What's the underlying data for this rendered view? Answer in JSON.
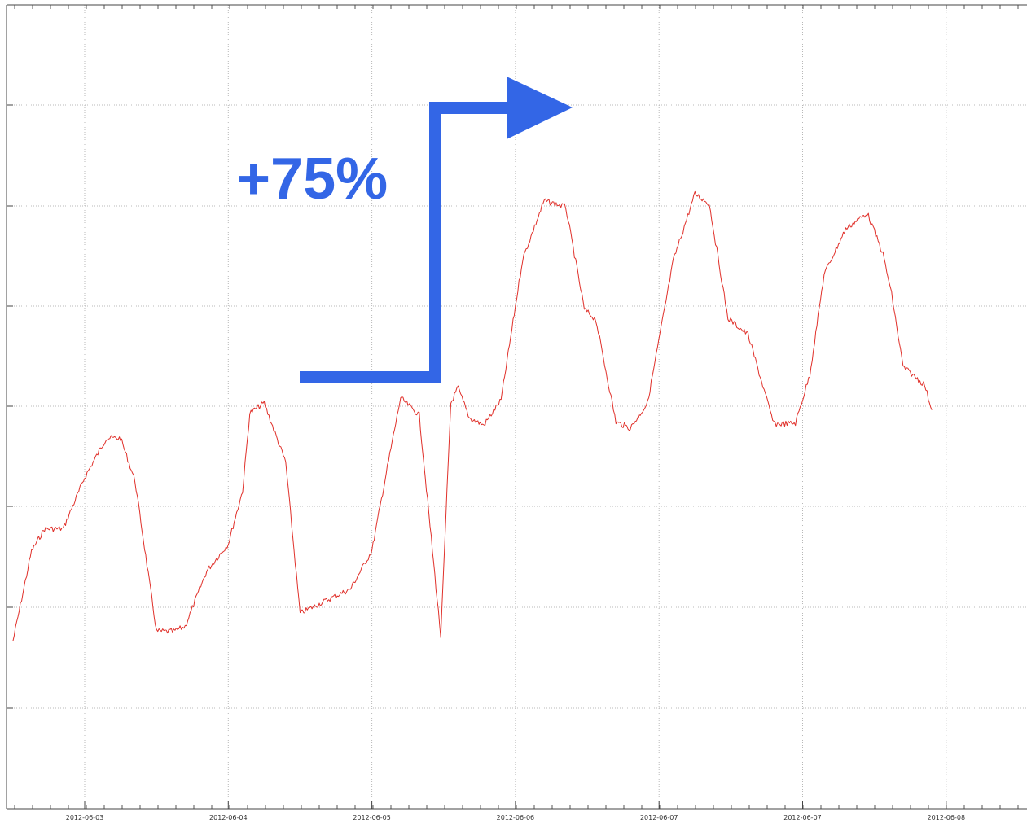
{
  "chart_data": {
    "type": "line",
    "title": "",
    "xlabel": "",
    "ylabel": "",
    "x_tick_labels": [
      "2012-06-03",
      "2012-06-04",
      "2012-06-05",
      "2012-06-06",
      "2012-06-07",
      "2012-06-07",
      "2012-06-08"
    ],
    "y_tick_labels": [],
    "grid": true,
    "legend": "none",
    "annotation": {
      "text": "+75%",
      "color": "#3366e6"
    },
    "series": [
      {
        "color": "#e0302a",
        "x": [
          0.0,
          0.13,
          0.22,
          0.35,
          0.5,
          0.65,
          0.75,
          0.85,
          1.0,
          1.12,
          1.2,
          1.35,
          1.5,
          1.6,
          1.65,
          1.75,
          1.9,
          2.0,
          2.2,
          2.35,
          2.5,
          2.6,
          2.7,
          2.83,
          2.98,
          3.05,
          3.1,
          3.18,
          3.28,
          3.4,
          3.55,
          3.7,
          3.85,
          3.98,
          4.06,
          4.2,
          4.3,
          4.42,
          4.6,
          4.75,
          4.85,
          4.98,
          5.12,
          5.3,
          5.45,
          5.55,
          5.65,
          5.8,
          5.95,
          6.06,
          6.12,
          6.2,
          6.35,
          6.4
        ],
        "y": [
          0.0,
          0.9,
          1.12,
          1.12,
          1.63,
          2.02,
          2.02,
          1.6,
          0.1,
          0.1,
          0.15,
          0.7,
          0.97,
          1.5,
          2.27,
          2.37,
          1.78,
          0.28,
          0.42,
          0.52,
          0.9,
          1.67,
          2.42,
          2.25,
          0.05,
          2.37,
          2.52,
          2.22,
          2.15,
          2.4,
          3.8,
          4.38,
          4.32,
          3.3,
          3.2,
          2.18,
          2.12,
          2.37,
          3.79,
          4.45,
          4.35,
          3.21,
          3.05,
          2.16,
          2.17,
          2.65,
          3.65,
          4.1,
          4.26,
          3.85,
          3.45,
          2.73,
          2.55,
          2.3
        ]
      }
    ]
  }
}
